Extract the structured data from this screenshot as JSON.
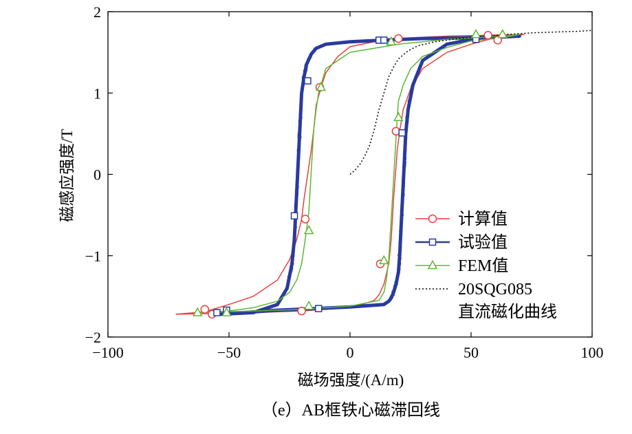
{
  "chart_data": {
    "type": "line",
    "title": "",
    "caption": "（e）AB框铁心磁滞回线",
    "xlabel": "磁场强度/(A/m)",
    "ylabel": "磁感应强度/T",
    "xlim": [
      -100,
      100
    ],
    "ylim": [
      -2,
      2
    ],
    "xticks": [
      -100,
      -50,
      0,
      50,
      100
    ],
    "xtick_labels": [
      "−100",
      "−50",
      "0",
      "50",
      "100"
    ],
    "yticks": [
      -2,
      -1,
      0,
      1,
      2
    ],
    "ytick_labels": [
      "−2",
      "−1",
      "0",
      "1",
      "2"
    ],
    "grid": false,
    "legend_position": "inside-lower-right",
    "series": [
      {
        "name": "计算值",
        "color": "#e8413c",
        "marker": "circle",
        "style": "solid",
        "x": [
          -72,
          -60,
          -50,
          -40,
          -30,
          -25,
          -22,
          -20,
          -19,
          -18,
          -17,
          -16,
          -15,
          -14,
          -12,
          -10,
          -5,
          0,
          10,
          20,
          40,
          57,
          72,
          61,
          50,
          40,
          30,
          25,
          22,
          20.5,
          19.5,
          19,
          18.5,
          18,
          17.5,
          17,
          16,
          14,
          12,
          10,
          5,
          0,
          -10,
          -20,
          -40,
          -57,
          -72
        ],
        "y": [
          -1.72,
          -1.69,
          -1.6,
          -1.5,
          -1.3,
          -1.05,
          -0.8,
          -0.55,
          -0.3,
          -0.1,
          0.1,
          0.3,
          0.55,
          0.85,
          1.07,
          1.25,
          1.45,
          1.57,
          1.63,
          1.67,
          1.7,
          1.71,
          1.72,
          1.69,
          1.6,
          1.5,
          1.3,
          1.05,
          0.8,
          0.53,
          0.3,
          0.1,
          -0.1,
          -0.3,
          -0.55,
          -0.8,
          -1.1,
          -1.35,
          -1.48,
          -1.55,
          -1.6,
          -1.63,
          -1.66,
          -1.68,
          -1.7,
          -1.71,
          -1.72
        ],
        "marker_points": [
          [
            -60,
            -1.66
          ],
          [
            -57,
            -1.72
          ],
          [
            -20,
            -1.68
          ],
          [
            -18.5,
            -0.55
          ],
          [
            -12.5,
            1.07
          ],
          [
            19,
            0.53
          ],
          [
            20,
            1.67
          ],
          [
            57,
            1.71
          ],
          [
            61,
            1.65
          ],
          [
            12.5,
            -1.1
          ]
        ]
      },
      {
        "name": "试验值",
        "color": "#2a3a9e",
        "marker": "square",
        "style": "solid-noisy",
        "x": [
          -54,
          -40,
          -30,
          -26,
          -24,
          -23,
          -22.5,
          -22,
          -21.5,
          -21,
          -20.5,
          -20,
          -19,
          -18,
          -16,
          -14,
          -10,
          0,
          14,
          30,
          52,
          70,
          52,
          40,
          30,
          26,
          24,
          23,
          22.5,
          22,
          21.5,
          21,
          20.5,
          20,
          19,
          18,
          17,
          16,
          14,
          0,
          -14,
          -30,
          -54
        ],
        "y": [
          -1.72,
          -1.7,
          -1.6,
          -1.4,
          -1.1,
          -0.8,
          -0.5,
          -0.2,
          0.1,
          0.4,
          0.7,
          1.0,
          1.2,
          1.35,
          1.48,
          1.55,
          1.6,
          1.63,
          1.65,
          1.67,
          1.68,
          1.7,
          1.67,
          1.6,
          1.4,
          1.1,
          0.8,
          0.5,
          0.2,
          -0.1,
          -0.4,
          -0.7,
          -1.0,
          -1.2,
          -1.35,
          -1.45,
          -1.52,
          -1.56,
          -1.6,
          -1.63,
          -1.65,
          -1.67,
          -1.72
        ],
        "marker_points": [
          [
            -55,
            -1.7
          ],
          [
            -51,
            -1.67
          ],
          [
            -23,
            -0.51
          ],
          [
            -17.5,
            1.15
          ],
          [
            12,
            1.65
          ],
          [
            14,
            1.65
          ],
          [
            21.5,
            0.51
          ],
          [
            52,
            1.66
          ],
          [
            -13,
            -1.65
          ]
        ]
      },
      {
        "name": "FEM值",
        "color": "#5cb832",
        "marker": "triangle",
        "style": "solid",
        "x": [
          -64,
          -50,
          -40,
          -30,
          -25,
          -22,
          -20,
          -19,
          -18,
          -17,
          -16.5,
          -16,
          -15.5,
          -15,
          -14,
          -13,
          -12,
          -10,
          0,
          20,
          40,
          63,
          70,
          63,
          50,
          40,
          30,
          25,
          22,
          20,
          19.5,
          19,
          18.5,
          18,
          17.5,
          17,
          16.5,
          16,
          15,
          14,
          12,
          0,
          -20,
          -40,
          -64
        ],
        "y": [
          -1.7,
          -1.68,
          -1.64,
          -1.56,
          -1.45,
          -1.3,
          -1.1,
          -0.9,
          -0.69,
          -0.45,
          -0.2,
          0.05,
          0.3,
          0.55,
          0.8,
          1.0,
          1.1,
          1.3,
          1.5,
          1.6,
          1.66,
          1.7,
          1.72,
          1.68,
          1.64,
          1.56,
          1.45,
          1.3,
          1.1,
          0.9,
          0.7,
          0.45,
          0.2,
          -0.05,
          -0.3,
          -0.55,
          -0.8,
          -1.05,
          -1.3,
          -1.45,
          -1.55,
          -1.62,
          -1.66,
          -1.68,
          -1.7
        ],
        "marker_points": [
          [
            -63,
            -1.7
          ],
          [
            -51,
            -1.7
          ],
          [
            -17,
            -0.69
          ],
          [
            -12,
            1.07
          ],
          [
            17,
            1.63
          ],
          [
            20,
            0.7
          ],
          [
            52,
            1.72
          ],
          [
            63,
            1.72
          ],
          [
            -17,
            -1.62
          ],
          [
            14,
            -1.06
          ]
        ]
      },
      {
        "name": "20SQG085\n直流磁化曲线",
        "legend_lines": [
          "20SQG085",
          "直流磁化曲线"
        ],
        "color": "#000000",
        "marker": "none",
        "style": "dotted",
        "x": [
          0,
          2,
          4,
          6,
          8,
          10,
          12,
          14,
          16,
          18,
          20,
          24,
          28,
          35,
          45,
          55,
          65,
          75,
          85,
          95,
          100
        ],
        "y": [
          0,
          0.05,
          0.12,
          0.22,
          0.35,
          0.55,
          0.8,
          1.0,
          1.2,
          1.32,
          1.42,
          1.52,
          1.58,
          1.63,
          1.67,
          1.7,
          1.72,
          1.74,
          1.75,
          1.76,
          1.77
        ]
      }
    ]
  }
}
